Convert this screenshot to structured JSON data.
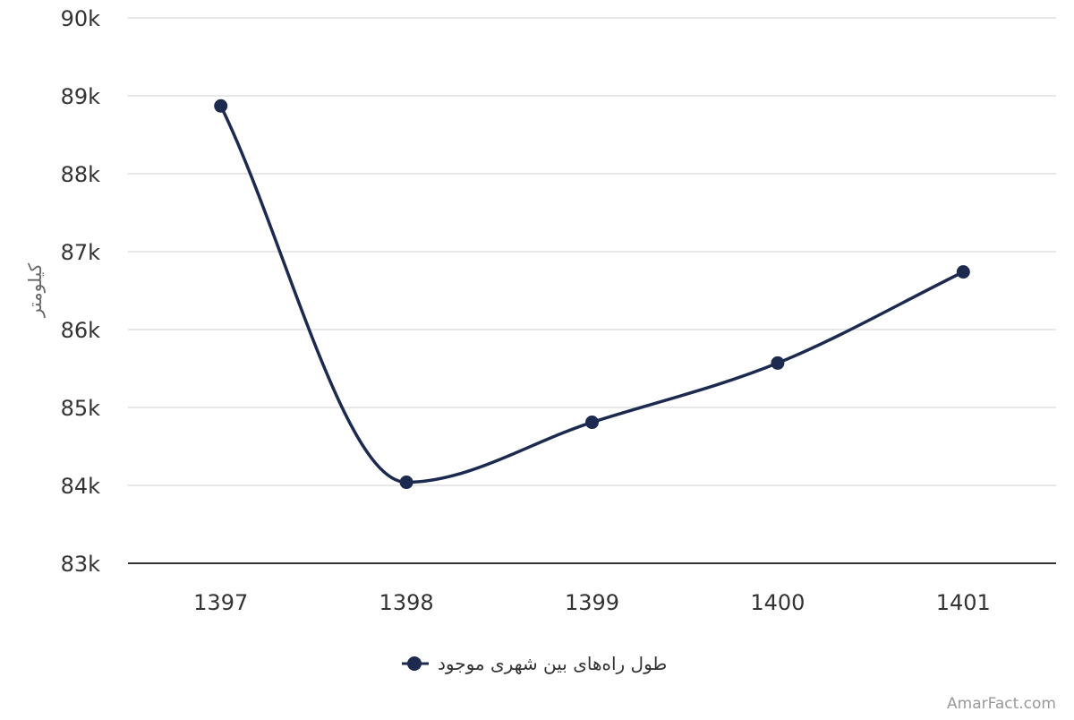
{
  "chart_data": {
    "type": "line",
    "title": "",
    "xlabel": "",
    "ylabel": "کیلومتر",
    "categories": [
      "1397",
      "1398",
      "1399",
      "1400",
      "1401"
    ],
    "series": [
      {
        "name": "طول راه‌های بین شهری موجود",
        "values": [
          88870,
          84040,
          84810,
          85570,
          86740
        ],
        "color": "#1b2a4e"
      }
    ],
    "ylim": [
      83000,
      90000
    ],
    "yticks": [
      83000,
      84000,
      85000,
      86000,
      87000,
      88000,
      89000,
      90000
    ],
    "ytick_labels": [
      "83k",
      "84k",
      "85k",
      "86k",
      "87k",
      "88k",
      "89k",
      "90k"
    ],
    "grid": true,
    "smooth": true,
    "legend_position": "bottom-center"
  },
  "credit": "AmarFact.com"
}
